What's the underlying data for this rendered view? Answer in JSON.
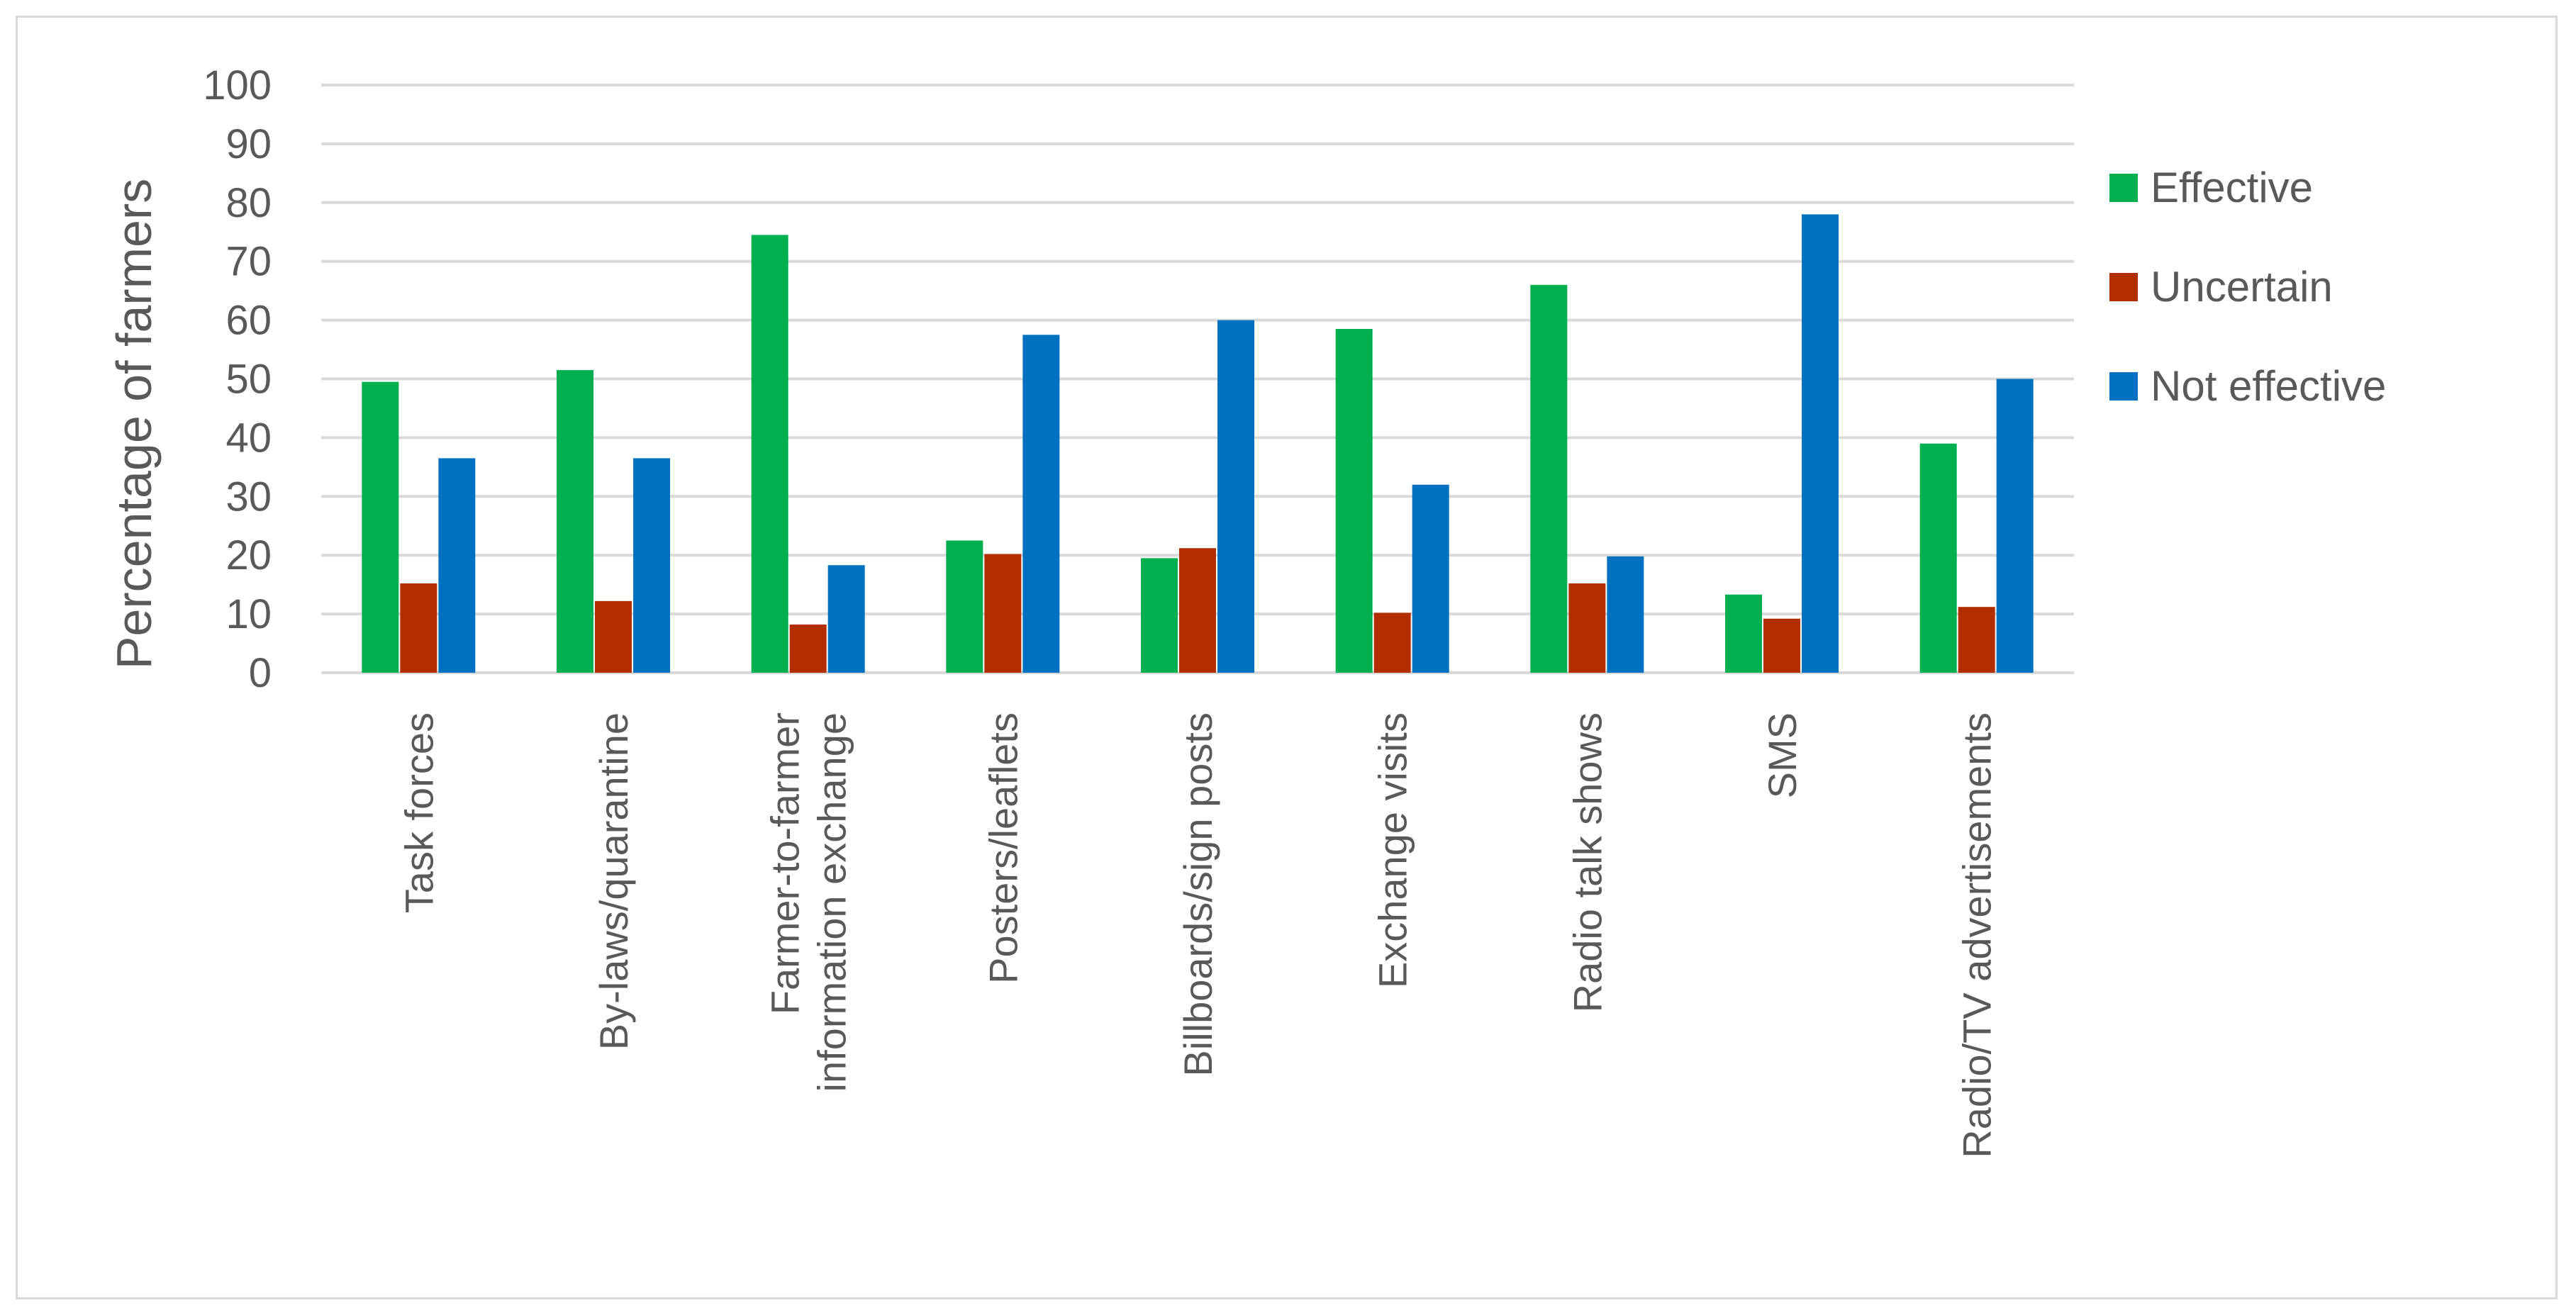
{
  "chart_data": {
    "type": "bar",
    "title": "",
    "xlabel": "",
    "ylabel": "Percentage of farmers",
    "ylim": [
      0,
      100
    ],
    "yticks": [
      0,
      10,
      20,
      30,
      40,
      50,
      60,
      70,
      80,
      90,
      100
    ],
    "grid": true,
    "legend_position": "right",
    "categories": [
      [
        "Task forces"
      ],
      [
        "By-laws/quarantine"
      ],
      [
        "Farmer-to-farmer",
        "information exchange"
      ],
      [
        "Posters/leaflets"
      ],
      [
        "Billboards/sign posts"
      ],
      [
        "Exchange visits"
      ],
      [
        "Radio talk shows"
      ],
      [
        "SMS"
      ],
      [
        "Radio/TV advertisements"
      ]
    ],
    "series": [
      {
        "name": "Effective",
        "color": "#00b050",
        "values": [
          49.5,
          51.5,
          74.5,
          22.5,
          19.5,
          58.5,
          66,
          13.3,
          39
        ]
      },
      {
        "name": "Uncertain",
        "color": "#b22e00",
        "values": [
          15.2,
          12.2,
          8.2,
          20.2,
          21.2,
          10.2,
          15.2,
          9.2,
          11.2
        ]
      },
      {
        "name": "Not effective",
        "color": "#0070c0",
        "values": [
          36.5,
          36.5,
          18.3,
          57.5,
          60,
          32,
          19.8,
          78,
          50
        ]
      }
    ]
  }
}
